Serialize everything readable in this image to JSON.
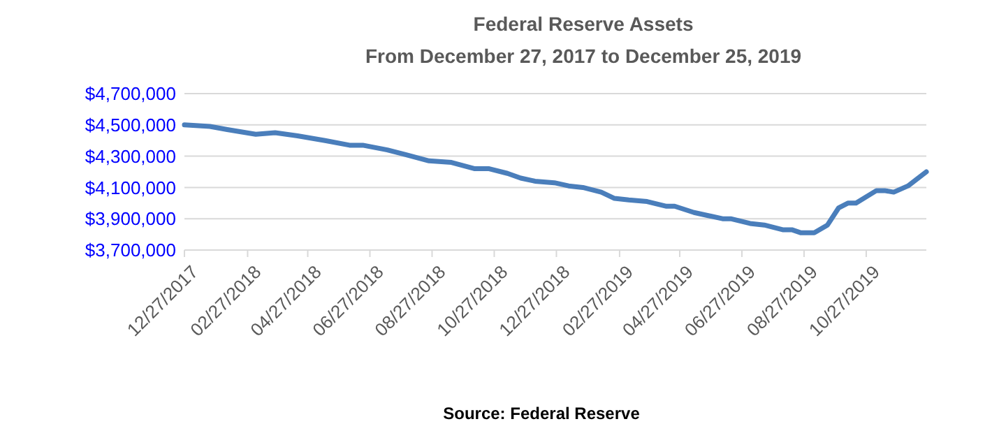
{
  "chart_data": {
    "type": "line",
    "title": "Federal Reserve Assets",
    "subtitle": "From December 27, 2017 to December 25, 2019",
    "annotations": [
      "Source: Federal Reserve"
    ],
    "x": [
      "2017-12-27",
      "2018-01-21",
      "2018-02-07",
      "2018-03-07",
      "2018-03-26",
      "2018-04-17",
      "2018-05-14",
      "2018-06-07",
      "2018-06-20",
      "2018-07-14",
      "2018-08-01",
      "2018-08-24",
      "2018-09-15",
      "2018-10-08",
      "2018-10-22",
      "2018-11-09",
      "2018-11-22",
      "2018-12-06",
      "2018-12-25",
      "2019-01-08",
      "2019-01-22",
      "2019-02-09",
      "2019-02-22",
      "2019-03-08",
      "2019-03-26",
      "2019-04-14",
      "2019-04-22",
      "2019-05-11",
      "2019-05-25",
      "2019-06-08",
      "2019-06-16",
      "2019-07-05",
      "2019-07-19",
      "2019-08-06",
      "2019-08-15",
      "2019-08-24",
      "2019-09-06",
      "2019-09-19",
      "2019-09-30",
      "2019-10-09",
      "2019-10-17",
      "2019-11-06",
      "2019-11-14",
      "2019-11-23",
      "2019-12-07",
      "2019-12-25"
    ],
    "series": [
      {
        "color": "#4a7ebb",
        "values": [
          4500000,
          4490000,
          4470000,
          4440000,
          4450000,
          4430000,
          4400000,
          4370000,
          4370000,
          4340000,
          4310000,
          4270000,
          4260000,
          4220000,
          4220000,
          4190000,
          4160000,
          4140000,
          4130000,
          4110000,
          4100000,
          4070000,
          4030000,
          4020000,
          4010000,
          3980000,
          3980000,
          3940000,
          3920000,
          3900000,
          3900000,
          3870000,
          3860000,
          3830000,
          3830000,
          3810000,
          3810000,
          3860000,
          3970000,
          4000000,
          4000000,
          4080000,
          4080000,
          4070000,
          4110000,
          4200000
        ]
      }
    ],
    "xlim": [
      "2017-12-27",
      "2019-12-25"
    ],
    "xticks": [
      {
        "value": "2017-12-27",
        "label": "12/27/2017"
      },
      {
        "value": "2018-02-27",
        "label": "02/27/2018"
      },
      {
        "value": "2018-04-27",
        "label": "04/27/2018"
      },
      {
        "value": "2018-06-27",
        "label": "06/27/2018"
      },
      {
        "value": "2018-08-27",
        "label": "08/27/2018"
      },
      {
        "value": "2018-10-27",
        "label": "10/27/2018"
      },
      {
        "value": "2018-12-27",
        "label": "12/27/2018"
      },
      {
        "value": "2019-02-27",
        "label": "02/27/2019"
      },
      {
        "value": "2019-04-27",
        "label": "04/27/2019"
      },
      {
        "value": "2019-06-27",
        "label": "06/27/2019"
      },
      {
        "value": "2019-08-27",
        "label": "08/27/2019"
      },
      {
        "value": "2019-10-27",
        "label": "10/27/2019"
      }
    ],
    "ylim": [
      3700000,
      4700000
    ],
    "yticks": [
      {
        "value": 3700000,
        "label": "$3,700,000"
      },
      {
        "value": 3900000,
        "label": "$3,900,000"
      },
      {
        "value": 4100000,
        "label": "$4,100,000"
      },
      {
        "value": 4300000,
        "label": "$4,300,000"
      },
      {
        "value": 4500000,
        "label": "$4,500,000"
      },
      {
        "value": 4700000,
        "label": "$4,700,000"
      }
    ],
    "grid": "y",
    "marker": "none",
    "line_style": "solid"
  }
}
